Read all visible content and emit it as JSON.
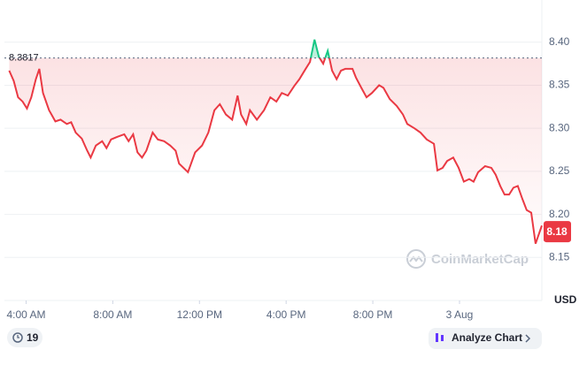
{
  "chart_data": {
    "type": "line",
    "x": [
      3.22,
      3.43,
      3.63,
      3.84,
      4.04,
      4.24,
      4.45,
      4.61,
      4.78,
      5.06,
      5.35,
      5.59,
      5.88,
      6.08,
      6.29,
      6.57,
      6.82,
      6.98,
      7.22,
      7.51,
      7.71,
      7.92,
      8.2,
      8.53,
      8.73,
      8.94,
      9.14,
      9.35,
      9.55,
      9.84,
      10.08,
      10.37,
      10.65,
      10.9,
      11.06,
      11.47,
      11.8,
      12.12,
      12.41,
      12.69,
      12.94,
      13.22,
      13.51,
      13.76,
      13.92,
      14.16,
      14.33,
      14.65,
      14.98,
      15.27,
      15.55,
      15.8,
      16.08,
      16.37,
      16.61,
      16.9,
      17.1,
      17.31,
      17.51,
      17.71,
      17.92,
      18.12,
      18.33,
      18.53,
      18.73,
      19.06,
      19.22,
      19.47,
      19.71,
      19.96,
      20.29,
      20.49,
      20.78,
      21.1,
      21.39,
      21.59,
      21.92,
      22.2,
      22.49,
      22.82,
      22.98,
      23.22,
      23.43,
      23.71,
      23.96,
      24.2,
      24.45,
      24.65,
      24.86,
      25.18,
      25.47,
      25.67,
      25.88,
      26.08,
      26.29,
      26.49,
      26.69,
      26.9,
      27.1,
      27.31,
      27.51,
      27.8
    ],
    "series": [
      {
        "color": "#ea3943",
        "up_color": "#16c784",
        "values": [
          8.367,
          8.355,
          8.336,
          8.331,
          8.323,
          8.336,
          8.357,
          8.369,
          8.341,
          8.321,
          8.308,
          8.31,
          8.305,
          8.307,
          8.295,
          8.288,
          8.274,
          8.266,
          8.28,
          8.285,
          8.277,
          8.287,
          8.29,
          8.293,
          8.285,
          8.293,
          8.272,
          8.266,
          8.274,
          8.295,
          8.287,
          8.285,
          8.28,
          8.274,
          8.259,
          8.249,
          8.272,
          8.28,
          8.295,
          8.321,
          8.328,
          8.316,
          8.31,
          8.338,
          8.316,
          8.305,
          8.321,
          8.31,
          8.321,
          8.336,
          8.331,
          8.341,
          8.338,
          8.349,
          8.357,
          8.369,
          8.377,
          8.403,
          8.383,
          8.375,
          8.39,
          8.367,
          8.357,
          8.367,
          8.369,
          8.369,
          8.359,
          8.347,
          8.336,
          8.341,
          8.35,
          8.347,
          8.334,
          8.326,
          8.316,
          8.305,
          8.3,
          8.295,
          8.287,
          8.282,
          8.251,
          8.254,
          8.262,
          8.266,
          8.254,
          8.238,
          8.241,
          8.238,
          8.249,
          8.256,
          8.254,
          8.246,
          8.233,
          8.223,
          8.223,
          8.231,
          8.233,
          8.218,
          8.205,
          8.202,
          8.166,
          8.187
        ]
      }
    ],
    "xlim": [
      3.0,
      27.8
    ],
    "xticks": [
      {
        "value": 4,
        "label": "4:00 AM"
      },
      {
        "value": 8,
        "label": "8:00 AM"
      },
      {
        "value": 12,
        "label": "12:00 PM"
      },
      {
        "value": 16,
        "label": "4:00 PM"
      },
      {
        "value": 20,
        "label": "8:00 PM"
      },
      {
        "value": 24,
        "label": "3 Aug"
      }
    ],
    "ylim": [
      8.1,
      8.449
    ],
    "yticks": [
      8.15,
      {
        "value": 8.2,
        "label": "8.20"
      },
      8.25,
      {
        "value": 8.3,
        "label": "8.30"
      },
      8.35,
      {
        "value": 8.4,
        "label": "8.40"
      }
    ],
    "y_axis_label": "USD",
    "reference_line": 8.3817,
    "current_price": 8.18,
    "grid": true
  },
  "ui": {
    "watermark": "CoinMarketCap",
    "badge": "19",
    "button": "Analyze Chart"
  }
}
